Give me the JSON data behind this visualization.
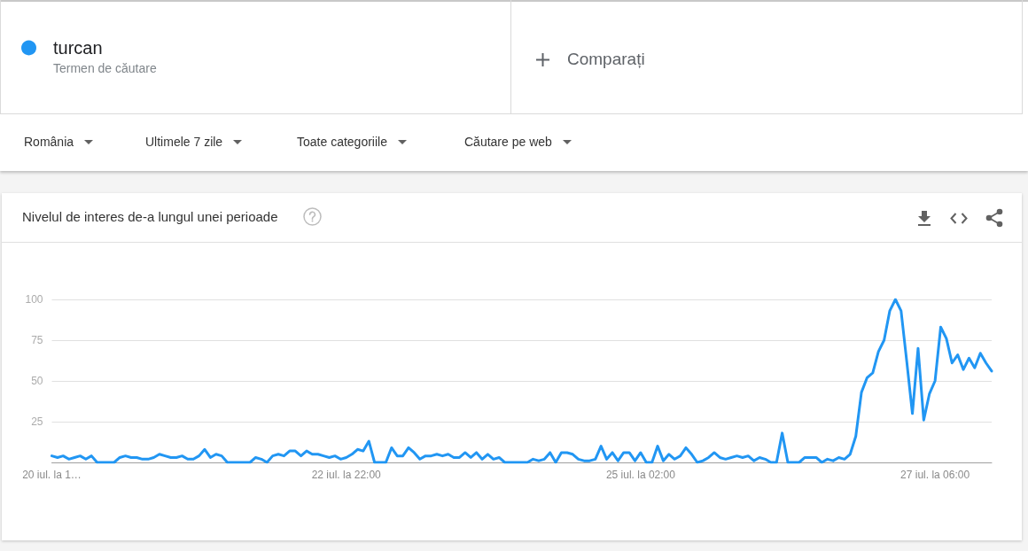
{
  "chart_data": {
    "type": "line",
    "title": "Nivelul de interes de-a lungul unei perioade",
    "annotations": [
      "Termen de căutare",
      "Comparați",
      "România",
      "Ultimele 7 zile",
      "Toate categoriile",
      "Căutare pe web"
    ],
    "categories": [
      "20 iul. la 1…",
      null,
      null,
      null,
      null,
      null,
      null,
      null,
      null,
      null,
      null,
      null,
      null,
      null,
      null,
      null,
      null,
      null,
      null,
      null,
      null,
      null,
      null,
      null,
      null,
      null,
      null,
      null,
      null,
      null,
      null,
      null,
      null,
      null,
      null,
      null,
      null,
      null,
      null,
      null,
      null,
      null,
      null,
      null,
      null,
      null,
      null,
      null,
      null,
      null,
      null,
      null,
      "22 iul. la 22:00",
      null,
      null,
      null,
      null,
      null,
      null,
      null,
      null,
      null,
      null,
      null,
      null,
      null,
      null,
      null,
      null,
      null,
      null,
      null,
      null,
      null,
      null,
      null,
      null,
      null,
      null,
      null,
      null,
      null,
      null,
      null,
      null,
      null,
      null,
      null,
      null,
      null,
      null,
      null,
      null,
      null,
      null,
      null,
      null,
      null,
      null,
      null,
      null,
      null,
      null,
      null,
      "25 iul. la 02:00",
      null,
      null,
      null,
      null,
      null,
      null,
      null,
      null,
      null,
      null,
      null,
      null,
      null,
      null,
      null,
      null,
      null,
      null,
      null,
      null,
      null,
      null,
      null,
      null,
      null,
      null,
      null,
      null,
      null,
      null,
      null,
      null,
      null,
      null,
      null,
      null,
      null,
      null,
      null,
      null,
      null,
      null,
      null,
      null,
      null,
      null,
      null,
      null,
      null,
      null,
      null,
      "27 iul. la 06:00",
      null,
      null,
      null,
      null,
      null,
      null,
      null,
      null,
      null,
      null
    ],
    "series": [
      {
        "name": "turcan",
        "color": "#2196f3",
        "values": [
          4,
          3,
          4,
          2,
          3,
          4,
          2,
          4,
          0,
          0,
          0,
          0,
          3,
          4,
          3,
          3,
          2,
          2,
          3,
          5,
          4,
          3,
          3,
          4,
          2,
          2,
          4,
          8,
          3,
          5,
          4,
          0,
          0,
          0,
          0,
          0,
          3,
          2,
          0,
          4,
          5,
          4,
          7,
          7,
          4,
          7,
          5,
          5,
          4,
          3,
          4,
          2,
          3,
          5,
          8,
          7,
          13,
          0,
          0,
          0,
          9,
          4,
          4,
          9,
          6,
          2,
          4,
          4,
          5,
          4,
          5,
          3,
          3,
          6,
          3,
          6,
          2,
          5,
          2,
          3,
          0,
          0,
          0,
          0,
          0,
          2,
          1,
          2,
          6,
          0,
          6,
          6,
          5,
          2,
          1,
          1,
          2,
          10,
          2,
          6,
          1,
          6,
          6,
          1,
          6,
          0,
          0,
          10,
          1,
          5,
          2,
          4,
          9,
          5,
          0,
          1,
          3,
          6,
          3,
          2,
          3,
          4,
          3,
          4,
          1,
          3,
          2,
          0,
          0,
          18,
          0,
          0,
          0,
          3,
          3,
          3,
          0,
          2,
          1,
          3,
          2,
          5,
          16,
          43,
          52,
          55,
          68,
          75,
          93,
          100,
          93,
          62,
          30,
          70,
          26,
          42,
          50,
          83,
          76,
          61,
          66,
          57,
          64,
          58,
          67,
          61,
          56
        ]
      }
    ],
    "ylim": [
      0,
      100
    ],
    "yticks": [
      25,
      50,
      75,
      100
    ],
    "grid": "y",
    "legend": "top left",
    "marker": "none",
    "line_style": "solid"
  }
}
